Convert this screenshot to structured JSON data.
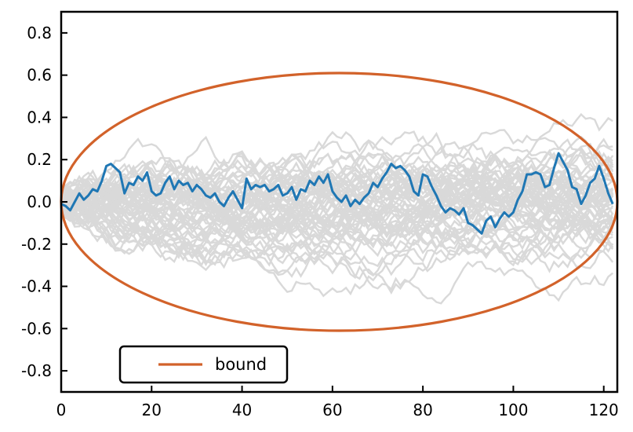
{
  "chart_data": {
    "type": "line",
    "title": "",
    "xlabel": "",
    "ylabel": "",
    "xlim": [
      0,
      123
    ],
    "ylim": [
      -0.9,
      0.9
    ],
    "x_ticks": [
      0,
      20,
      40,
      60,
      80,
      100,
      120
    ],
    "x_tick_labels": [
      "0",
      "20",
      "40",
      "60",
      "80",
      "100",
      "120"
    ],
    "y_ticks": [
      0.8,
      0.6,
      0.4,
      0.2,
      0.0,
      -0.2,
      -0.4,
      -0.6,
      -0.8
    ],
    "y_tick_labels": [
      "0.8",
      "0.6",
      "0.4",
      "0.2",
      "0.0",
      "-0.2",
      "-0.4",
      "-0.6",
      "-0.8"
    ],
    "grid": false,
    "legend": {
      "position": "lower-left",
      "entries": [
        {
          "label": "bound",
          "color": "#D2622A"
        }
      ]
    },
    "bound": {
      "x_center": 61.5,
      "x_half_width": 61.5,
      "y_half_height": 0.61,
      "color": "#D2622A"
    },
    "background_paths": {
      "count": 60,
      "color": "#D9D9D9",
      "steps": 123,
      "max_abs": 0.73
    },
    "highlight_series": {
      "color": "#1F77B4",
      "x": [
        0,
        1,
        2,
        3,
        4,
        5,
        6,
        7,
        8,
        9,
        10,
        11,
        12,
        13,
        14,
        15,
        16,
        17,
        18,
        19,
        20,
        21,
        22,
        23,
        24,
        25,
        26,
        27,
        28,
        29,
        30,
        31,
        32,
        33,
        34,
        35,
        36,
        37,
        38,
        39,
        40,
        41,
        42,
        43,
        44,
        45,
        46,
        47,
        48,
        49,
        50,
        51,
        52,
        53,
        54,
        55,
        56,
        57,
        58,
        59,
        60,
        61,
        62,
        63,
        64,
        65,
        66,
        67,
        68,
        69,
        70,
        71,
        72,
        73,
        74,
        75,
        76,
        77,
        78,
        79,
        80,
        81,
        82,
        83,
        84,
        85,
        86,
        87,
        88,
        89,
        90,
        91,
        92,
        93,
        94,
        95,
        96,
        97,
        98,
        99,
        100,
        101,
        102,
        103,
        104,
        105,
        106,
        107,
        108,
        109,
        110,
        111,
        112,
        113,
        114,
        115,
        116,
        117,
        118,
        119,
        120,
        121,
        122
      ],
      "y": [
        -0.01,
        -0.02,
        -0.04,
        0.0,
        0.04,
        0.01,
        0.03,
        0.06,
        0.05,
        0.1,
        0.17,
        0.18,
        0.16,
        0.14,
        0.04,
        0.09,
        0.08,
        0.12,
        0.1,
        0.14,
        0.05,
        0.03,
        0.04,
        0.09,
        0.12,
        0.06,
        0.1,
        0.08,
        0.09,
        0.05,
        0.08,
        0.06,
        0.03,
        0.02,
        0.04,
        0.0,
        -0.02,
        0.02,
        0.05,
        0.01,
        -0.03,
        0.11,
        0.06,
        0.08,
        0.07,
        0.08,
        0.05,
        0.06,
        0.08,
        0.03,
        0.04,
        0.07,
        0.01,
        0.06,
        0.05,
        0.1,
        0.08,
        0.12,
        0.09,
        0.13,
        0.05,
        0.02,
        0.0,
        0.03,
        -0.02,
        0.01,
        -0.01,
        0.02,
        0.04,
        0.09,
        0.07,
        0.11,
        0.14,
        0.18,
        0.16,
        0.17,
        0.15,
        0.12,
        0.05,
        0.03,
        0.13,
        0.12,
        0.07,
        0.03,
        -0.02,
        -0.05,
        -0.03,
        -0.04,
        -0.06,
        -0.03,
        -0.1,
        -0.11,
        -0.13,
        -0.15,
        -0.09,
        -0.07,
        -0.12,
        -0.08,
        -0.05,
        -0.07,
        -0.05,
        0.01,
        0.05,
        0.13,
        0.13,
        0.14,
        0.13,
        0.07,
        0.08,
        0.16,
        0.23,
        0.19,
        0.15,
        0.07,
        0.06,
        -0.01,
        0.03,
        0.09,
        0.11,
        0.17,
        0.11,
        0.04,
        -0.01
      ]
    }
  }
}
